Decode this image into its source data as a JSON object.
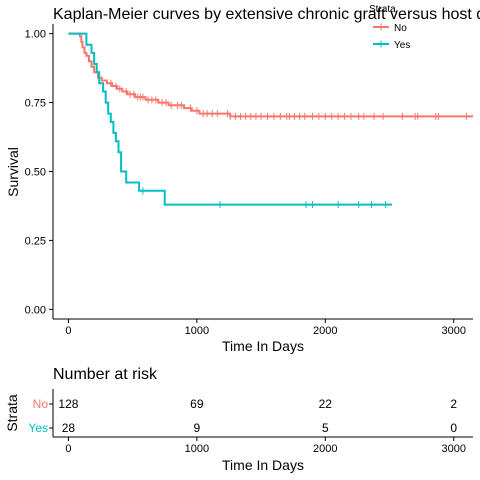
{
  "chart_data": [
    {
      "type": "line",
      "title": "Kaplan-Meier curves by extensive chronic graft versus host disease",
      "xlabel": "Time In Days",
      "ylabel": "Survival",
      "xlim": [
        -120,
        3150
      ],
      "ylim": [
        -0.035,
        1.035
      ],
      "xticks": [
        0,
        1000,
        2000,
        3000
      ],
      "yticks": [
        0.0,
        0.25,
        0.5,
        0.75,
        1.0
      ],
      "ytick_labels": [
        "0.00",
        "0.25",
        "0.50",
        "0.75",
        "1.00"
      ],
      "grid": false,
      "legend": {
        "title": "Strata",
        "placement": "top-right",
        "entries": [
          "No",
          "Yes"
        ]
      },
      "series": [
        {
          "name": "No",
          "color": "#F8766D",
          "steps": [
            [
              0,
              1.0
            ],
            [
              90,
              0.99
            ],
            [
              100,
              0.97
            ],
            [
              110,
              0.95
            ],
            [
              125,
              0.93
            ],
            [
              140,
              0.92
            ],
            [
              160,
              0.9
            ],
            [
              180,
              0.88
            ],
            [
              200,
              0.86
            ],
            [
              230,
              0.84
            ],
            [
              260,
              0.83
            ],
            [
              300,
              0.82
            ],
            [
              340,
              0.81
            ],
            [
              380,
              0.8
            ],
            [
              420,
              0.79
            ],
            [
              460,
              0.78
            ],
            [
              520,
              0.77
            ],
            [
              600,
              0.76
            ],
            [
              700,
              0.75
            ],
            [
              780,
              0.74
            ],
            [
              900,
              0.73
            ],
            [
              960,
              0.72
            ],
            [
              1020,
              0.71
            ],
            [
              1260,
              0.7
            ],
            [
              3150,
              0.7
            ]
          ],
          "censor_x": [
            330,
            370,
            400,
            450,
            480,
            510,
            540,
            560,
            580,
            620,
            650,
            680,
            730,
            760,
            800,
            850,
            880,
            950,
            1000,
            1050,
            1080,
            1120,
            1160,
            1240,
            1260,
            1300,
            1340,
            1380,
            1420,
            1460,
            1500,
            1550,
            1600,
            1650,
            1700,
            1720,
            1760,
            1800,
            1840,
            1900,
            1950,
            2000,
            2050,
            2100,
            2150,
            2200,
            2260,
            2300,
            2380,
            2450,
            2600,
            2700,
            2720,
            2860,
            2880,
            3100
          ]
        },
        {
          "name": "Yes",
          "color": "#00BFC4",
          "steps": [
            [
              0,
              1.0
            ],
            [
              140,
              0.96
            ],
            [
              180,
              0.93
            ],
            [
              200,
              0.89
            ],
            [
              220,
              0.86
            ],
            [
              240,
              0.82
            ],
            [
              270,
              0.79
            ],
            [
              290,
              0.75
            ],
            [
              310,
              0.71
            ],
            [
              330,
              0.68
            ],
            [
              350,
              0.64
            ],
            [
              370,
              0.61
            ],
            [
              390,
              0.57
            ],
            [
              410,
              0.5
            ],
            [
              450,
              0.46
            ],
            [
              550,
              0.43
            ],
            [
              750,
              0.38
            ],
            [
              2520,
              0.38
            ]
          ],
          "censor_x": [
            580,
            1180,
            1850,
            1900,
            2100,
            2260,
            2360,
            2470
          ]
        }
      ]
    },
    {
      "type": "table",
      "title": "Number at risk",
      "xlabel": "Time In Days",
      "ylabel": "Strata",
      "xlim": [
        -120,
        3150
      ],
      "x": [
        0,
        1000,
        2000,
        3000
      ],
      "rows": [
        {
          "label": "No",
          "color": "#F8766D",
          "values": [
            "128",
            "69",
            "22",
            "2"
          ]
        },
        {
          "label": "Yes",
          "color": "#00BFC4",
          "values": [
            "28",
            "9",
            "5",
            "0"
          ]
        }
      ]
    }
  ]
}
